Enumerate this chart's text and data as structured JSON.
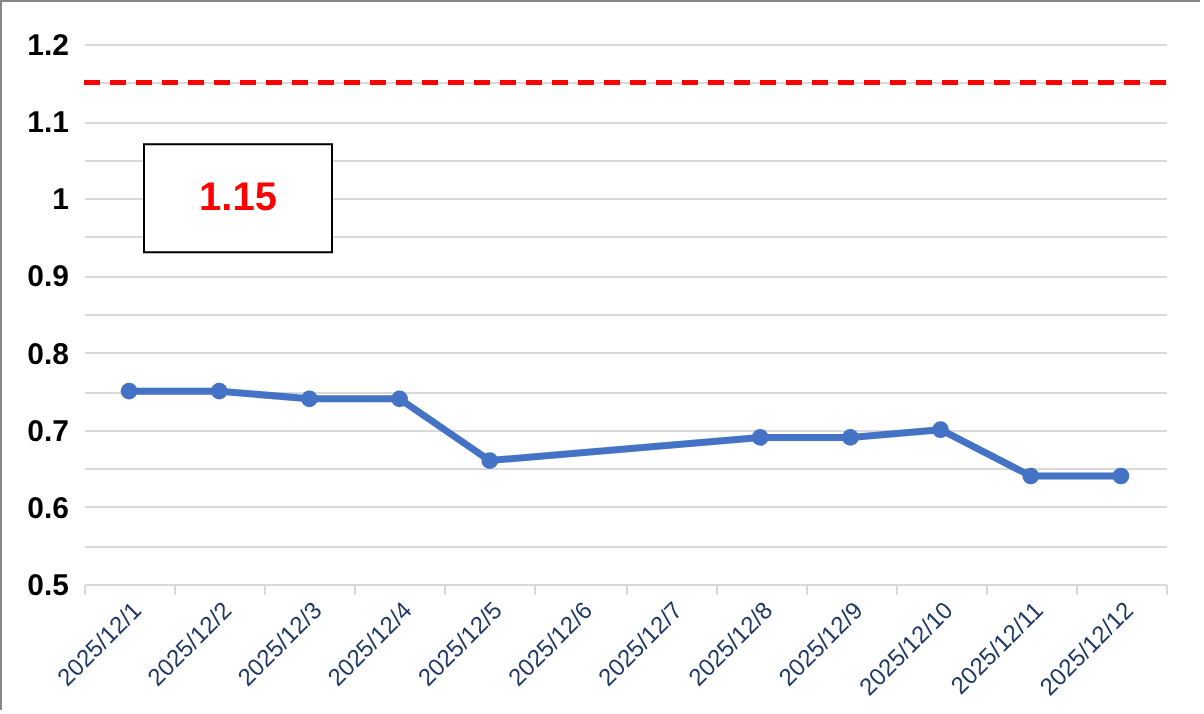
{
  "chart_data": {
    "type": "line",
    "categories": [
      "2025/12/1",
      "2025/12/2",
      "2025/12/3",
      "2025/12/4",
      "2025/12/5",
      "2025/12/6",
      "2025/12/7",
      "2025/12/8",
      "2025/12/9",
      "2025/12/10",
      "2025/12/11",
      "2025/12/12"
    ],
    "series": [
      {
        "color": "#4472c4",
        "values": [
          0.75,
          0.75,
          0.74,
          0.74,
          0.66,
          null,
          null,
          0.69,
          0.69,
          0.7,
          0.64,
          0.64
        ]
      }
    ],
    "ylim": [
      0.5,
      1.2
    ],
    "yticks": [
      0.5,
      {
        "value": 0.55,
        "label": null
      },
      0.6,
      {
        "value": 0.65,
        "label": null
      },
      0.7,
      {
        "value": 0.75,
        "label": null
      },
      0.8,
      {
        "value": 0.85,
        "label": null
      },
      0.9,
      {
        "value": 0.95,
        "label": null
      },
      1,
      {
        "value": 1.05,
        "label": null
      },
      1.1,
      {
        "value": 1.15,
        "label": null
      },
      1.2
    ],
    "grid": true,
    "marker": "circle",
    "line_style": "solid",
    "ref_lines": [
      {
        "axis": "y",
        "value": 1.15,
        "label": "1.15",
        "color": "#ff0000",
        "line_style": "dashed"
      }
    ]
  }
}
